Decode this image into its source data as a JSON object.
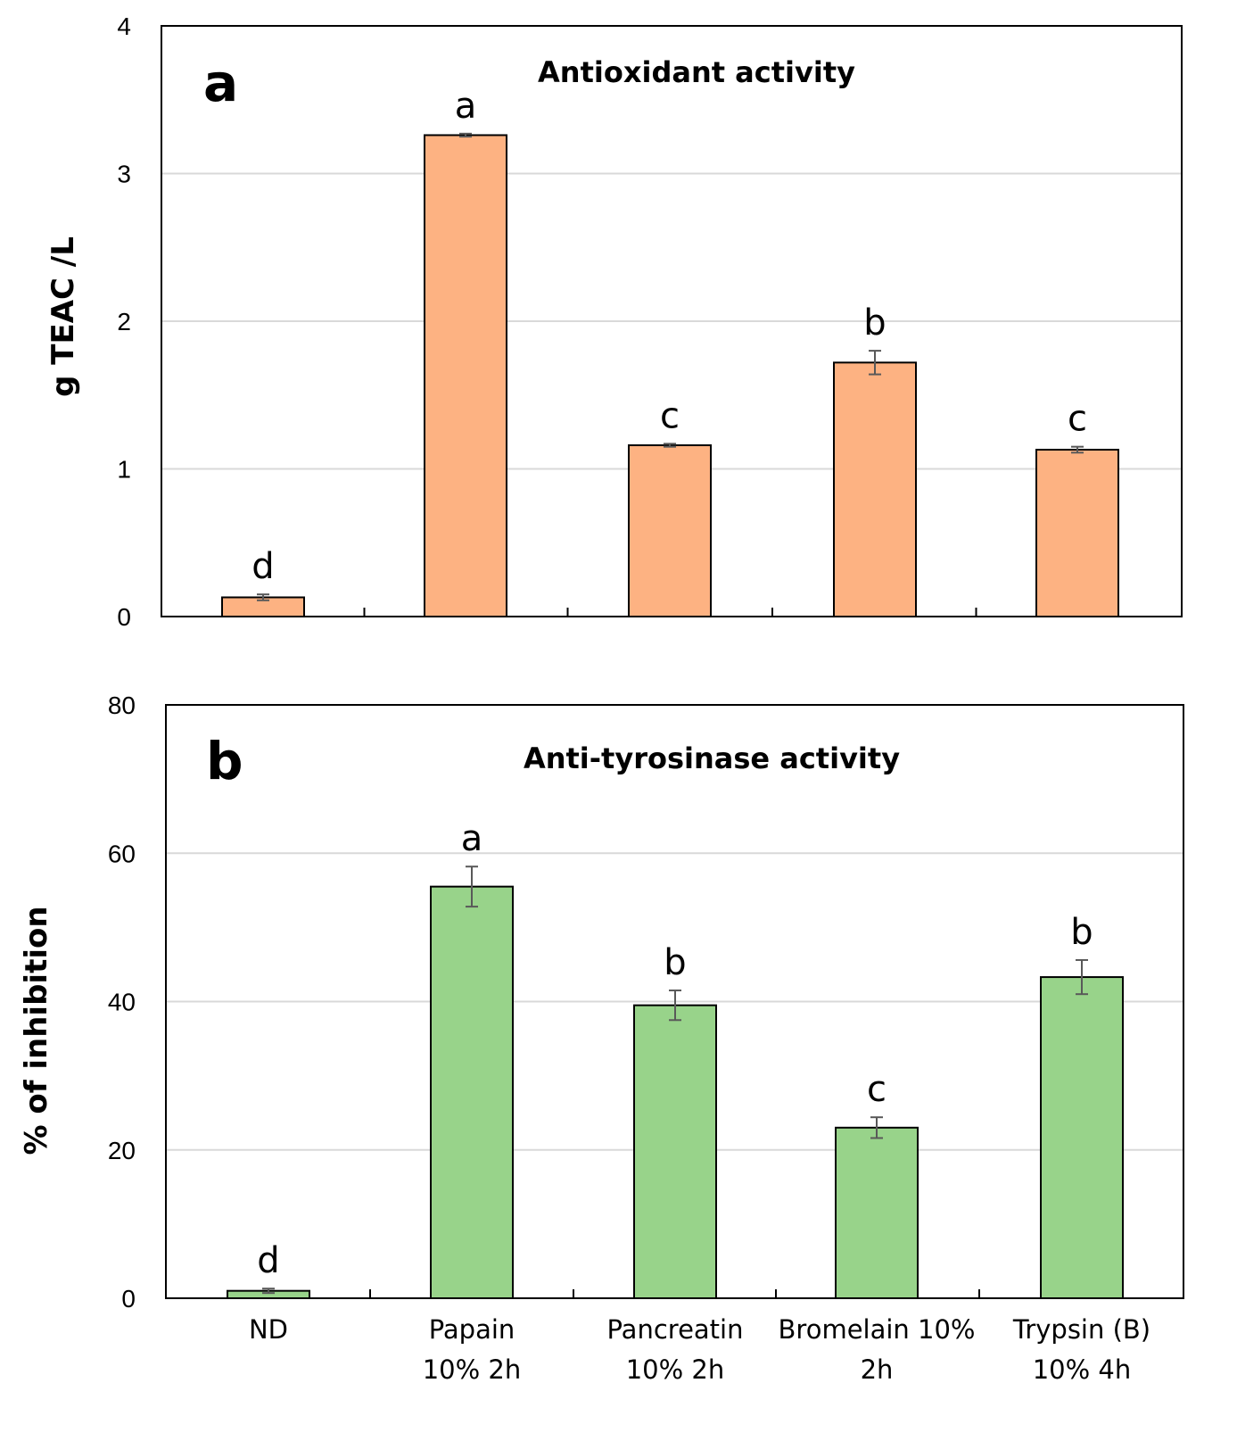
{
  "chart_data": [
    {
      "type": "bar",
      "panel_letter": "a",
      "title": "Antioxidant activity",
      "xlabel": "",
      "ylabel": "g TEAC /L",
      "ylim": [
        0,
        4
      ],
      "yticks": [
        "0",
        "1",
        "2",
        "3",
        "4"
      ],
      "grid": true,
      "bar_color": "#FDB282",
      "categories": [
        [
          "ND"
        ],
        [
          "Papain",
          "10% 2h"
        ],
        [
          "Pancreatin",
          "10% 2h"
        ],
        [
          "Bromelain 10%",
          "2h"
        ],
        [
          "Trypsin (B)",
          "10% 4h"
        ]
      ],
      "series": [
        {
          "name": "Antioxidant activity",
          "values": [
            0.13,
            3.26,
            1.16,
            1.72,
            1.13
          ],
          "errors": [
            0.02,
            0.01,
            0.01,
            0.08,
            0.02
          ],
          "significance": [
            "d",
            "a",
            "c",
            "b",
            "c"
          ]
        }
      ]
    },
    {
      "type": "bar",
      "panel_letter": "b",
      "title": "Anti-tyrosinase activity",
      "xlabel": "",
      "ylabel": "% of inhibition",
      "ylim": [
        0,
        80
      ],
      "yticks": [
        "0",
        "20",
        "40",
        "60",
        "80"
      ],
      "grid": true,
      "bar_color": "#98D38A",
      "categories": [
        [
          "ND"
        ],
        [
          "Papain",
          "10% 2h"
        ],
        [
          "Pancreatin",
          "10% 2h"
        ],
        [
          "Bromelain 10%",
          "2h"
        ],
        [
          "Trypsin (B)",
          "10% 4h"
        ]
      ],
      "series": [
        {
          "name": "Anti-tyrosinase activity",
          "values": [
            1,
            55.5,
            39.5,
            23,
            43.3
          ],
          "errors": [
            0.3,
            2.7,
            2.0,
            1.4,
            2.3
          ],
          "significance": [
            "d",
            "a",
            "b",
            "c",
            "b"
          ]
        }
      ]
    }
  ]
}
